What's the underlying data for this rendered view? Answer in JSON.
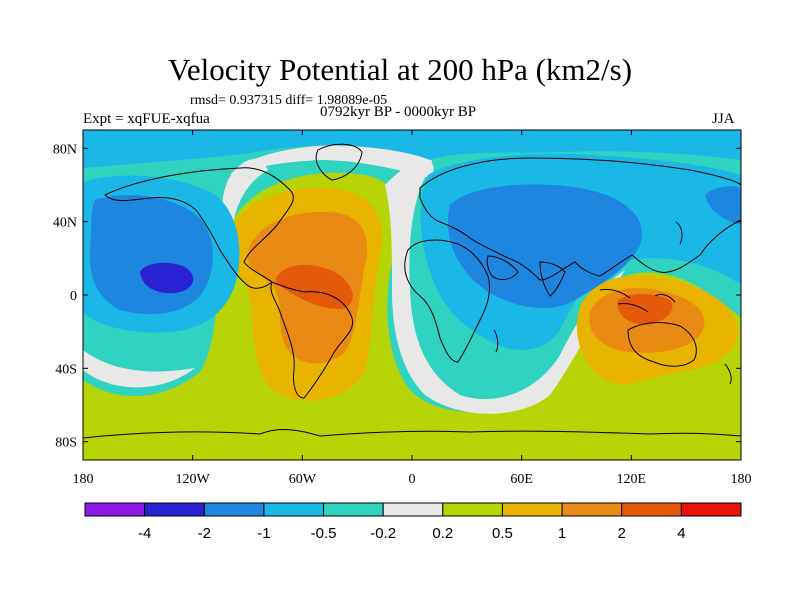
{
  "title": "Velocity Potential at 200 hPa (km2/s)",
  "stats": "rmsd= 0.937315 diff= 1.98089e-05",
  "experiment": "Expt = xqFUE-xqfua",
  "period": "0792kyr BP - 0000kyr BP",
  "season": "JJA",
  "chart_data": {
    "type": "heatmap",
    "title": "Velocity Potential at 200 hPa (km2/s)",
    "projection": "cylindrical equidistant",
    "xlim": [
      -180,
      180
    ],
    "ylim": [
      -90,
      90
    ],
    "x_ticks": [
      {
        "value": -180,
        "label": "180"
      },
      {
        "value": -120,
        "label": "120W"
      },
      {
        "value": -60,
        "label": "60W"
      },
      {
        "value": 0,
        "label": "0"
      },
      {
        "value": 60,
        "label": "60E"
      },
      {
        "value": 120,
        "label": "120E"
      },
      {
        "value": 180,
        "label": "180"
      }
    ],
    "y_ticks": [
      {
        "value": 80,
        "label": "80N"
      },
      {
        "value": 40,
        "label": "40N"
      },
      {
        "value": 0,
        "label": "0"
      },
      {
        "value": -40,
        "label": "40S"
      },
      {
        "value": -80,
        "label": "80S"
      }
    ],
    "colorbar": {
      "boundaries": [
        "-4",
        "-2",
        "-1",
        "-0.5",
        "-0.2",
        "0.2",
        "0.5",
        "1",
        "2",
        "4"
      ],
      "colors": [
        "#8c1ae6",
        "#2a22d2",
        "#1f86e0",
        "#19b8e6",
        "#2fd3c0",
        "#e8e8e8",
        "#b6d406",
        "#e8b400",
        "#e98a14",
        "#e55a0a",
        "#e8140a"
      ]
    },
    "features": [
      {
        "name": "negative minimum",
        "lon": -125,
        "lat": 12,
        "level": "-4 to -2"
      },
      {
        "name": "positive maximum",
        "lon": -45,
        "lat": 10,
        "level": "2 to 4"
      },
      {
        "name": "positive maximum",
        "lon": 120,
        "lat": -12,
        "level": "2 to 4"
      },
      {
        "name": "negative basin",
        "lon": 60,
        "lat": 15,
        "level": "-1 to -0.5"
      }
    ]
  }
}
